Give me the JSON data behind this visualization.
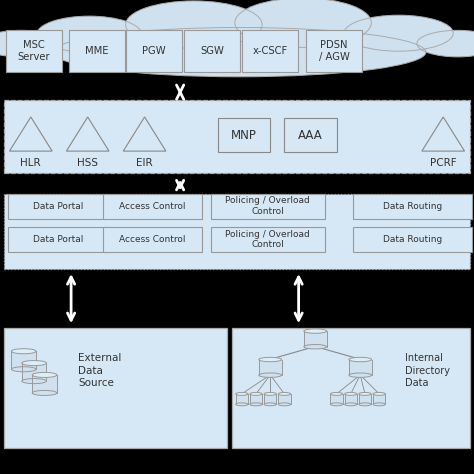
{
  "bg_color": "#ffffff",
  "outer_bg": "#000000",
  "panel_bg": "#d6e8f5",
  "box_bg": "#d6e8f5",
  "box_border": "#999999",
  "arrow_color": "#ffffff",
  "text_color": "#333333",
  "cloud_color": "#cfe0ef",
  "layer1_boxes": [
    "MSC\nServer",
    "MME",
    "PGW",
    "SGW",
    "x-CSCF",
    "PDSN\n/ AGW"
  ],
  "layer2_tri_labels": [
    "HLR",
    "HSS",
    "EIR",
    "PCRF"
  ],
  "layer2_box_labels": [
    "MNP",
    "AAA"
  ],
  "layer3_rows": [
    [
      "Data Portal",
      "Access Control",
      "Policing / Overload\nControl",
      "Data Routing"
    ],
    [
      "Data Portal",
      "Access Control",
      "Policing / Overload\nControl",
      "Data Routing"
    ]
  ],
  "fig_width": 4.74,
  "fig_height": 4.74,
  "dpi": 100
}
